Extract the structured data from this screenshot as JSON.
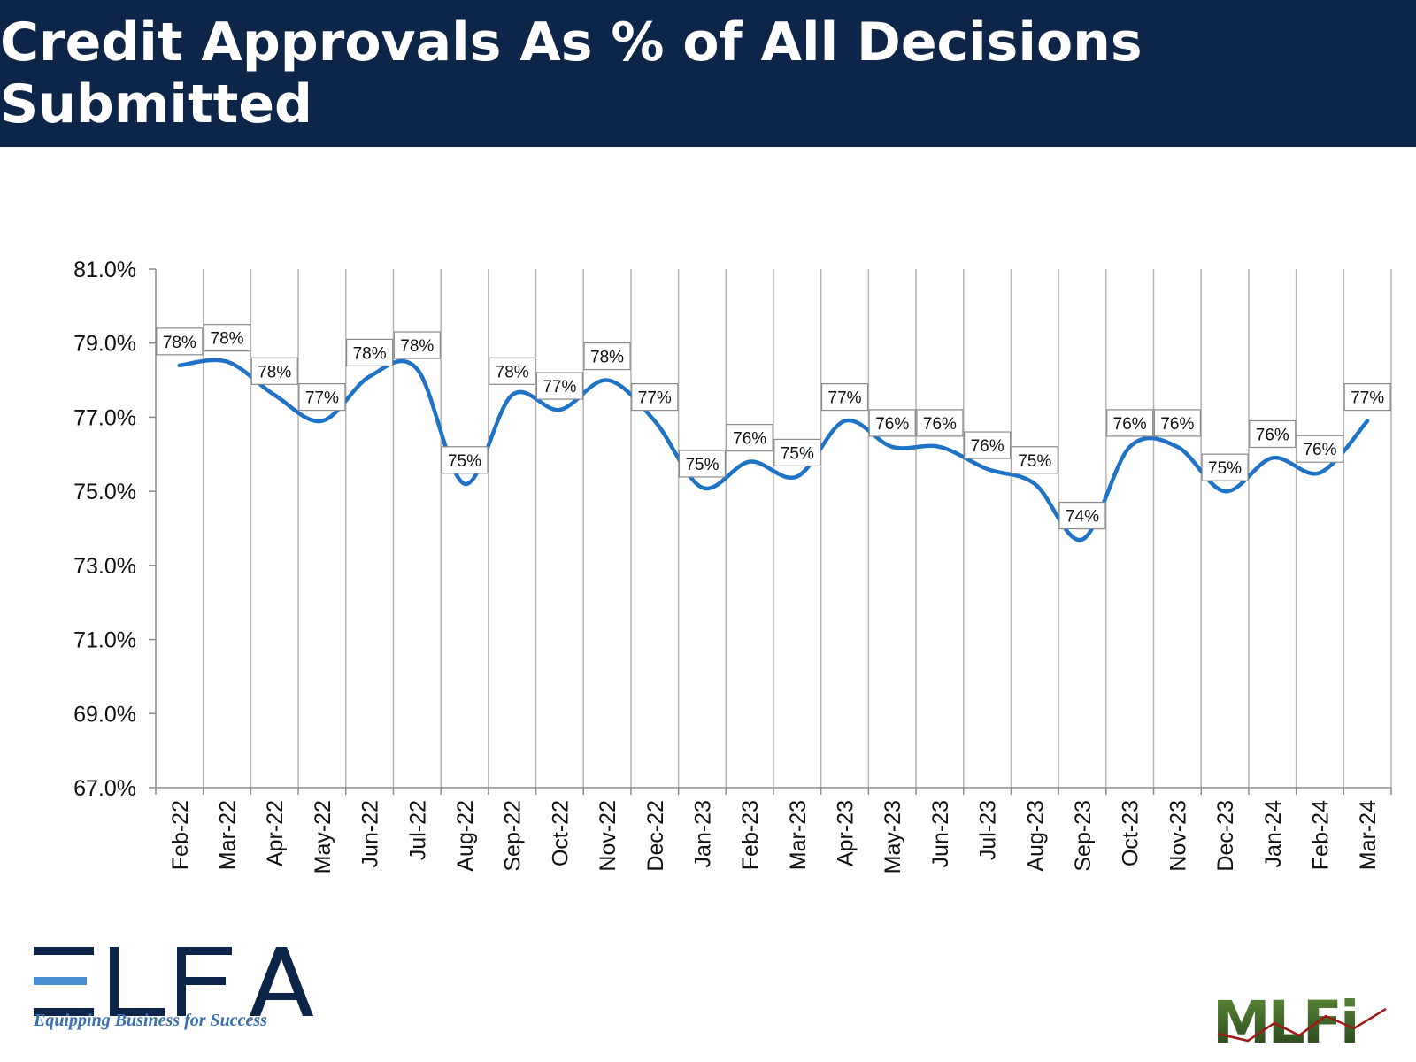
{
  "title": "Credit Approvals As % of All Decisions Submitted",
  "chart_data": {
    "type": "line",
    "categories": [
      "Feb-22",
      "Mar-22",
      "Apr-22",
      "May-22",
      "Jun-22",
      "Jul-22",
      "Aug-22",
      "Sep-22",
      "Oct-22",
      "Nov-22",
      "Dec-22",
      "Jan-23",
      "Feb-23",
      "Mar-23",
      "Apr-23",
      "May-23",
      "Jun-23",
      "Jul-23",
      "Aug-23",
      "Sep-23",
      "Oct-23",
      "Nov-23",
      "Dec-23",
      "Jan-24",
      "Feb-24",
      "Mar-24"
    ],
    "values": [
      78.4,
      78.5,
      77.6,
      76.9,
      78.1,
      78.3,
      75.2,
      77.6,
      77.2,
      78.0,
      76.9,
      75.1,
      75.8,
      75.4,
      76.9,
      76.2,
      76.2,
      75.6,
      75.2,
      73.7,
      76.2,
      76.2,
      75.0,
      75.9,
      75.5,
      76.9
    ],
    "labels": [
      "78%",
      "78%",
      "78%",
      "77%",
      "78%",
      "78%",
      "75%",
      "78%",
      "77%",
      "78%",
      "77%",
      "75%",
      "76%",
      "75%",
      "77%",
      "76%",
      "76%",
      "76%",
      "75%",
      "74%",
      "76%",
      "76%",
      "75%",
      "76%",
      "76%",
      "77%"
    ],
    "ylim": [
      67,
      81
    ],
    "yticks": [
      67,
      69,
      71,
      73,
      75,
      77,
      79,
      81
    ],
    "ytick_labels": [
      "67.0%",
      "69.0%",
      "71.0%",
      "73.0%",
      "75.0%",
      "77.0%",
      "79.0%",
      "81.0%"
    ],
    "grid": "vertical",
    "line_color": "#1f73c6"
  },
  "logos": {
    "elfa_text": "ELFA",
    "elfa_tagline": "Equipping Business for Success",
    "mlfi_text": "MLFi"
  }
}
